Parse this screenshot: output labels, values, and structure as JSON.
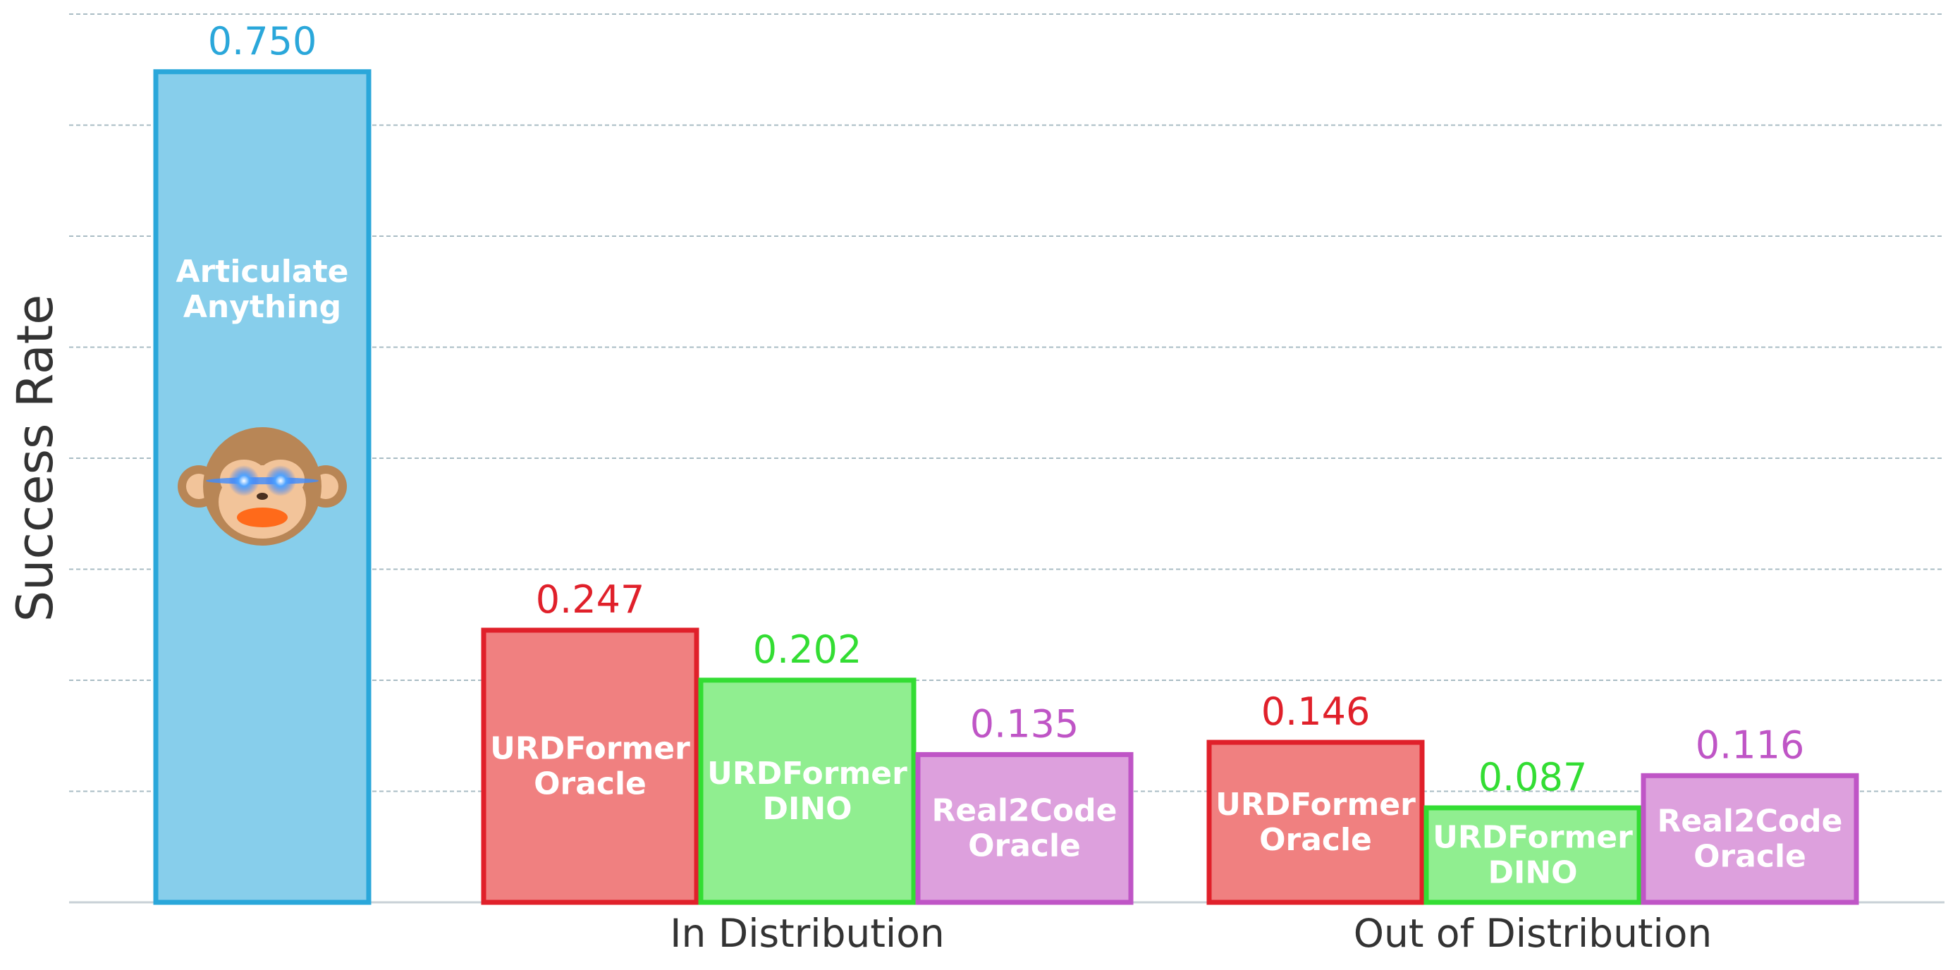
{
  "chart_data": {
    "type": "bar",
    "title": "",
    "ylabel": "Success Rate",
    "xlabel": "",
    "ylim": [
      0,
      0.8
    ],
    "grid": true,
    "groups": [
      {
        "category": "",
        "bars": [
          {
            "label_lines": [
              "Articulate",
              "Anything"
            ],
            "value": 0.75,
            "value_text": "0.750",
            "fill": "#87CEEB",
            "stroke": "#2AA7DA",
            "icon": "monkey-icon"
          }
        ]
      },
      {
        "category": "In Distribution",
        "bars": [
          {
            "label_lines": [
              "URDFormer",
              "Oracle"
            ],
            "value": 0.247,
            "value_text": "0.247",
            "fill": "#F08080",
            "stroke": "#E0202A"
          },
          {
            "label_lines": [
              "URDFormer",
              "DINO"
            ],
            "value": 0.202,
            "value_text": "0.202",
            "fill": "#90EE90",
            "stroke": "#33DD33"
          },
          {
            "label_lines": [
              "Real2Code",
              "Oracle"
            ],
            "value": 0.135,
            "value_text": "0.135",
            "fill": "#DDA0DD",
            "stroke": "#BF55C6"
          }
        ]
      },
      {
        "category": "Out of Distribution",
        "bars": [
          {
            "label_lines": [
              "URDFormer",
              "Oracle"
            ],
            "value": 0.146,
            "value_text": "0.146",
            "fill": "#F08080",
            "stroke": "#E0202A"
          },
          {
            "label_lines": [
              "URDFormer",
              "DINO"
            ],
            "value": 0.087,
            "value_text": "0.087",
            "fill": "#90EE90",
            "stroke": "#33DD33"
          },
          {
            "label_lines": [
              "Real2Code",
              "Oracle"
            ],
            "value": 0.116,
            "value_text": "0.116",
            "fill": "#DDA0DD",
            "stroke": "#BF55C6"
          }
        ]
      }
    ]
  }
}
